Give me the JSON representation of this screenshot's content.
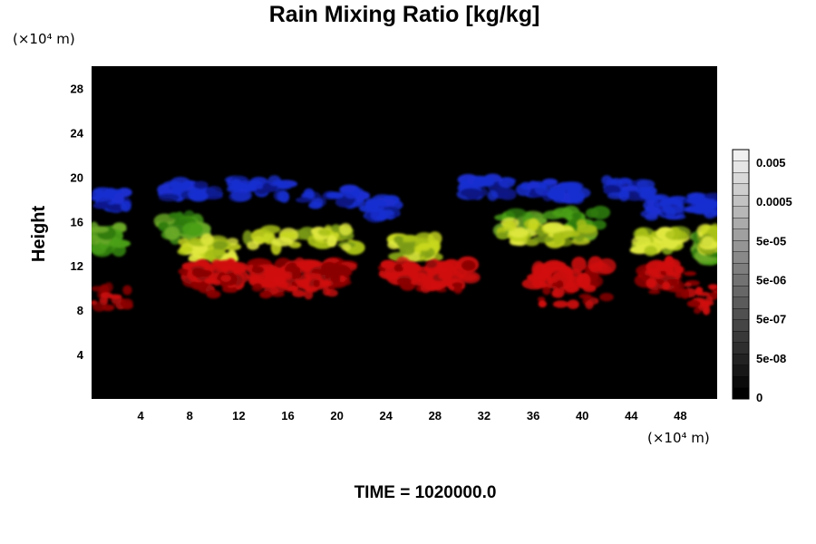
{
  "colors": {
    "background": "#000000",
    "rain": "#d01010",
    "rain_dark": "#8a0606",
    "graupel": "#c8d820",
    "graupel_green": "#4aa018",
    "snow": "#1a2fd0",
    "snow_dark": "#0c1680"
  },
  "chart_data": {
    "type": "heatmap",
    "title": "Rain Mixing Ratio [kg/kg]",
    "ylabel": "Height",
    "xlabel": "",
    "x_unit_label": "(×10⁴ m)",
    "y_unit_label": "(×10⁴ m)",
    "x_range": [
      0,
      51
    ],
    "y_range": [
      0,
      30
    ],
    "x_ticks": [
      4,
      8,
      12,
      16,
      20,
      24,
      28,
      32,
      36,
      40,
      44,
      48
    ],
    "y_ticks": [
      4,
      8,
      12,
      16,
      20,
      24,
      28
    ],
    "colorbar": {
      "scale": "log",
      "levels": 22,
      "tick_labels": [
        "0.005",
        "0.0005",
        "5e-05",
        "5e-06",
        "5e-07",
        "5e-08",
        "0"
      ]
    },
    "features": {
      "rain_blocks": [
        [
          8,
          12
        ],
        [
          13,
          17
        ],
        [
          17.5,
          21
        ],
        [
          24,
          31
        ],
        [
          36,
          42
        ],
        [
          45,
          47.5
        ]
      ],
      "rain_patches": [
        [
          0,
          3,
          9
        ],
        [
          8.5,
          12.2,
          10.5
        ],
        [
          13.5,
          17,
          10.5
        ],
        [
          17.5,
          21,
          10.5
        ],
        [
          24.5,
          30,
          11
        ],
        [
          36,
          42,
          9.6
        ],
        [
          45,
          49,
          10.5
        ],
        [
          49,
          51,
          9
        ]
      ],
      "yellow_bands": [
        [
          7.5,
          11.5,
          13.5
        ],
        [
          12.5,
          21.5,
          14.5
        ],
        [
          24.5,
          28,
          13.6
        ],
        [
          33,
          41,
          15
        ],
        [
          44.5,
          48,
          14.2
        ],
        [
          50,
          51,
          14.4
        ]
      ],
      "blue_bands": [
        [
          0.5,
          3,
          18
        ],
        [
          6,
          10,
          18.7
        ],
        [
          11.5,
          16,
          19
        ],
        [
          17,
          22,
          18.2
        ],
        [
          22.5,
          24.5,
          17.2
        ],
        [
          30.5,
          34,
          19
        ],
        [
          35,
          40,
          18.8
        ],
        [
          42,
          45.5,
          19
        ],
        [
          45.5,
          48,
          17.2
        ],
        [
          49,
          51,
          17.5
        ]
      ],
      "green_bands": [
        [
          0,
          2.5,
          14.5
        ],
        [
          5.5,
          9.5,
          15.5
        ],
        [
          33,
          42,
          15.8
        ],
        [
          49.5,
          51,
          13.6
        ]
      ]
    }
  },
  "footer": {
    "time_label": "TIME = 1020000.0"
  }
}
